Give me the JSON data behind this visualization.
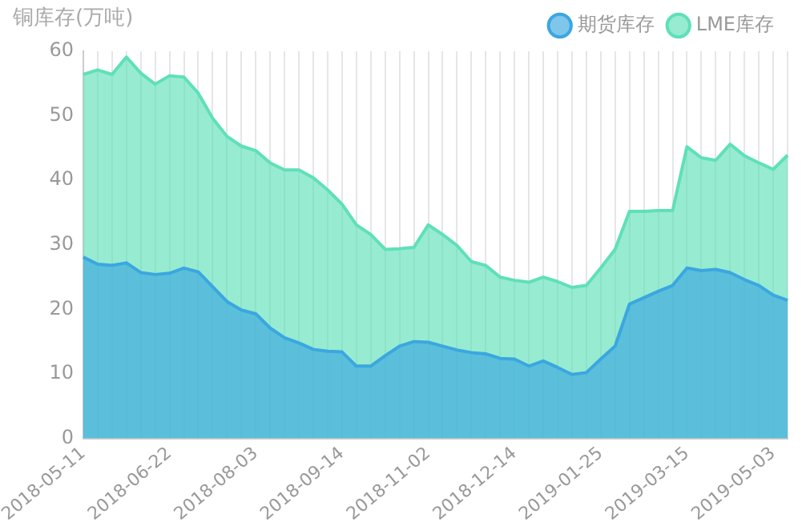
{
  "chart_data": {
    "type": "area",
    "ylabel": "铜库存(万吨)",
    "categories": [
      "2018-05-11",
      null,
      null,
      null,
      null,
      null,
      "2018-06-22",
      null,
      null,
      null,
      null,
      null,
      "2018-08-03",
      null,
      null,
      null,
      null,
      null,
      "2018-09-14",
      null,
      null,
      null,
      null,
      null,
      "2018-11-02",
      null,
      null,
      null,
      null,
      null,
      "2018-12-14",
      null,
      null,
      null,
      null,
      null,
      "2019-01-25",
      null,
      null,
      null,
      null,
      null,
      "2019-03-15",
      null,
      null,
      null,
      null,
      null,
      "2019-05-03",
      null
    ],
    "series": [
      {
        "name": "LME库存",
        "color": "#5fe0b8",
        "values": [
          56.4,
          57.1,
          56.4,
          59.1,
          56.6,
          54.9,
          56.2,
          56.0,
          53.5,
          49.6,
          46.8,
          45.3,
          44.6,
          42.7,
          41.6,
          41.6,
          40.4,
          38.5,
          36.3,
          33.1,
          31.6,
          29.3,
          29.4,
          29.6,
          33.1,
          31.6,
          29.9,
          27.4,
          26.8,
          25.0,
          24.5,
          24.2,
          25.0,
          24.3,
          23.4,
          23.7,
          26.4,
          29.3,
          35.2,
          35.2,
          35.3,
          35.3,
          45.2,
          43.5,
          43.1,
          45.6,
          43.8,
          42.7,
          41.7,
          43.9
        ]
      },
      {
        "name": "期货库存",
        "color": "#3ba7e0",
        "values": [
          28.1,
          27.0,
          26.8,
          27.2,
          25.7,
          25.4,
          25.6,
          26.4,
          25.8,
          23.5,
          21.2,
          19.9,
          19.3,
          17.1,
          15.6,
          14.8,
          13.8,
          13.5,
          13.4,
          11.2,
          11.2,
          12.8,
          14.3,
          15.0,
          14.9,
          14.3,
          13.7,
          13.3,
          13.1,
          12.4,
          12.3,
          11.2,
          12.0,
          11.0,
          9.9,
          10.2,
          12.3,
          14.3,
          20.8,
          21.8,
          22.8,
          23.7,
          26.4,
          26.0,
          26.2,
          25.7,
          24.6,
          23.7,
          22.2,
          21.4
        ]
      }
    ],
    "ylim": [
      0,
      60
    ],
    "yticks": [
      0,
      10,
      20,
      30,
      40,
      50,
      60
    ],
    "grid": "x",
    "legend": "top right"
  }
}
